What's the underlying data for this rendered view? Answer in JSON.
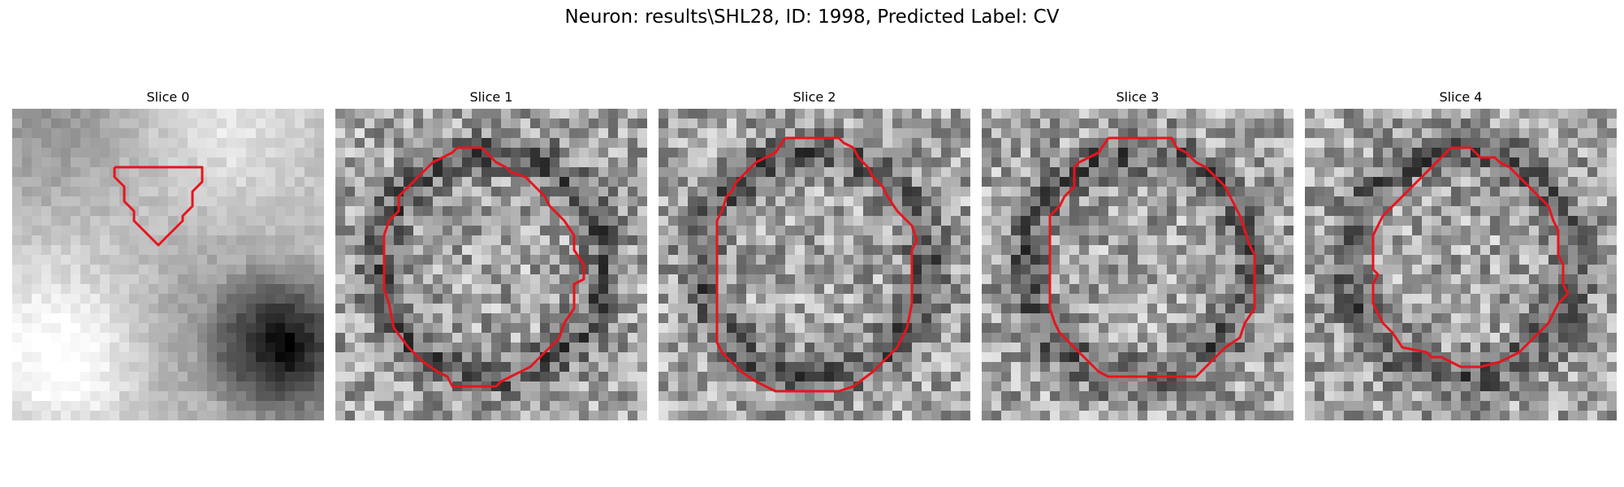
{
  "title": "Neuron: results\\SHL28, ID: 1998, Predicted Label: CV",
  "panels": [
    {
      "title": "Slice 0",
      "style": "smooth",
      "seed": 11
    },
    {
      "title": "Slice 1",
      "style": "noisy",
      "seed": 23
    },
    {
      "title": "Slice 2",
      "style": "noisy",
      "seed": 37
    },
    {
      "title": "Slice 3",
      "style": "noisy",
      "seed": 51
    },
    {
      "title": "Slice 4",
      "style": "noisy",
      "seed": 73
    }
  ],
  "contour_color": "#e8141c",
  "colormap": "gray"
}
